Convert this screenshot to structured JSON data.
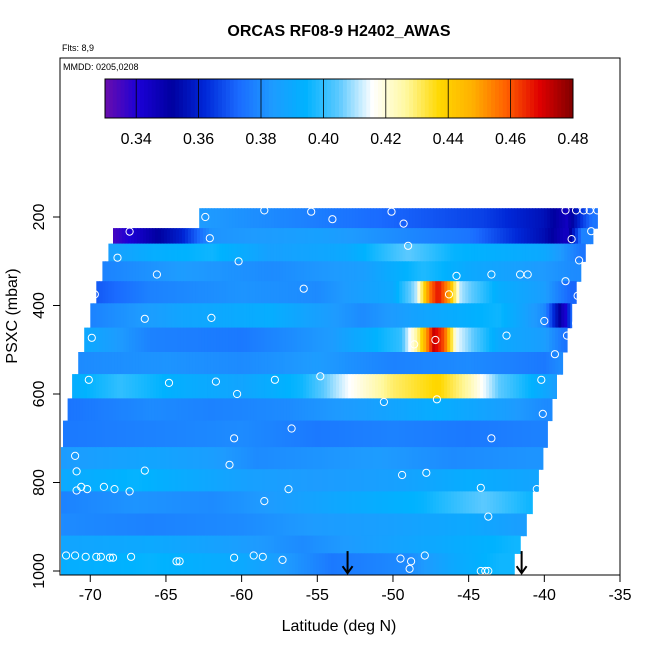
{
  "chart_data": {
    "type": "heatmap",
    "title": "ORCAS RF08-9 H2402_AWAS",
    "note_flights": "Flts: 8,9",
    "note_dates": "MMDD: 0205,0208",
    "xlabel": "Latitude (deg N)",
    "ylabel": "PSXC (mbar)",
    "xlim": [
      -72,
      -35
    ],
    "ylim": [
      1010,
      110
    ],
    "x_ticks": [
      -70,
      -65,
      -60,
      -55,
      -50,
      -45,
      -40,
      -35
    ],
    "y_ticks": [
      200,
      400,
      600,
      800,
      1000
    ],
    "colorbar": {
      "min": 0.33,
      "max": 0.48,
      "ticks": [
        0.34,
        0.36,
        0.38,
        0.4,
        0.42,
        0.44,
        0.46,
        0.48
      ],
      "tick_labels": [
        "0.34",
        "0.36",
        "0.38",
        "0.40",
        "0.42",
        "0.44",
        "0.46",
        "0.48"
      ],
      "colors": [
        "#6a0dad",
        "#1b00d6",
        "#0000a0",
        "#0028d8",
        "#1a6bff",
        "#1e9bff",
        "#00b2ff",
        "#5cc9ff",
        "#ffffff",
        "#fff8a0",
        "#ffd800",
        "#ffb000",
        "#ff6000",
        "#e00000",
        "#800000"
      ]
    },
    "layers": [
      {
        "p_top": 180,
        "p_bot": 225,
        "lat_start": -62.8,
        "lat_end": -36.5,
        "stops": [
          [
            -62.8,
            0.384
          ],
          [
            -56,
            0.378
          ],
          [
            -50,
            0.372
          ],
          [
            -44,
            0.366
          ],
          [
            -40,
            0.356
          ],
          [
            -38.5,
            0.345
          ],
          [
            -37.5,
            0.365
          ],
          [
            -36.8,
            0.375
          ]
        ]
      },
      {
        "p_top": 225,
        "p_bot": 260,
        "lat_start": -68.5,
        "lat_end": -36.8,
        "stops": [
          [
            -68.5,
            0.335
          ],
          [
            -67,
            0.343
          ],
          [
            -64,
            0.36
          ],
          [
            -62,
            0.382
          ],
          [
            -55,
            0.386
          ],
          [
            -45,
            0.375
          ],
          [
            -40,
            0.355
          ],
          [
            -38.5,
            0.344
          ],
          [
            -37.5,
            0.378
          ]
        ]
      },
      {
        "p_top": 260,
        "p_bot": 300,
        "lat_start": -68.8,
        "lat_end": -37.3,
        "stops": [
          [
            -68.8,
            0.385
          ],
          [
            -66,
            0.392
          ],
          [
            -62,
            0.396
          ],
          [
            -58,
            0.386
          ],
          [
            -53,
            0.39
          ],
          [
            -49,
            0.405
          ],
          [
            -46,
            0.395
          ],
          [
            -40,
            0.39
          ],
          [
            -37.5,
            0.375
          ]
        ]
      },
      {
        "p_top": 300,
        "p_bot": 345,
        "lat_start": -69.2,
        "lat_end": -37.6,
        "stops": [
          [
            -69.2,
            0.378
          ],
          [
            -64,
            0.384
          ],
          [
            -58,
            0.38
          ],
          [
            -52,
            0.385
          ],
          [
            -48,
            0.398
          ],
          [
            -45,
            0.39
          ],
          [
            -41,
            0.385
          ],
          [
            -38,
            0.38
          ]
        ]
      },
      {
        "p_top": 345,
        "p_bot": 395,
        "lat_start": -69.6,
        "lat_end": -37.9,
        "stops": [
          [
            -69.6,
            0.37
          ],
          [
            -66,
            0.378
          ],
          [
            -60,
            0.382
          ],
          [
            -55,
            0.38
          ],
          [
            -50,
            0.39
          ],
          [
            -48.5,
            0.41
          ],
          [
            -47.6,
            0.455
          ],
          [
            -47,
            0.468
          ],
          [
            -46.3,
            0.45
          ],
          [
            -45.5,
            0.41
          ],
          [
            -43,
            0.392
          ],
          [
            -40,
            0.385
          ],
          [
            -38.3,
            0.372
          ]
        ]
      },
      {
        "p_top": 395,
        "p_bot": 450,
        "lat_start": -70,
        "lat_end": -38.2,
        "stops": [
          [
            -70,
            0.378
          ],
          [
            -64,
            0.388
          ],
          [
            -58,
            0.392
          ],
          [
            -52,
            0.38
          ],
          [
            -47,
            0.39
          ],
          [
            -43,
            0.396
          ],
          [
            -40,
            0.38
          ],
          [
            -38.6,
            0.34
          ],
          [
            -38.3,
            0.372
          ]
        ]
      },
      {
        "p_top": 450,
        "p_bot": 505,
        "lat_start": -70.4,
        "lat_end": -38.5,
        "stops": [
          [
            -70.4,
            0.39
          ],
          [
            -66,
            0.378
          ],
          [
            -60,
            0.376
          ],
          [
            -54,
            0.384
          ],
          [
            -49.5,
            0.4
          ],
          [
            -48.3,
            0.43
          ],
          [
            -47.3,
            0.472
          ],
          [
            -46.6,
            0.46
          ],
          [
            -45.8,
            0.415
          ],
          [
            -43,
            0.39
          ],
          [
            -40,
            0.385
          ],
          [
            -38.7,
            0.375
          ]
        ]
      },
      {
        "p_top": 505,
        "p_bot": 555,
        "lat_start": -70.8,
        "lat_end": -38.8,
        "stops": [
          [
            -70.8,
            0.38
          ],
          [
            -65,
            0.382
          ],
          [
            -60,
            0.38
          ],
          [
            -55,
            0.384
          ],
          [
            -50,
            0.378
          ],
          [
            -45,
            0.38
          ],
          [
            -40,
            0.376
          ],
          [
            -39,
            0.38
          ]
        ]
      },
      {
        "p_top": 555,
        "p_bot": 610,
        "lat_start": -71.2,
        "lat_end": -39.2,
        "stops": [
          [
            -71.2,
            0.392
          ],
          [
            -68,
            0.4
          ],
          [
            -64,
            0.392
          ],
          [
            -60,
            0.388
          ],
          [
            -56,
            0.396
          ],
          [
            -53,
            0.415
          ],
          [
            -50,
            0.43
          ],
          [
            -47,
            0.438
          ],
          [
            -45,
            0.425
          ],
          [
            -43,
            0.405
          ],
          [
            -41,
            0.395
          ],
          [
            -39.2,
            0.385
          ]
        ]
      },
      {
        "p_top": 610,
        "p_bot": 660,
        "lat_start": -71.5,
        "lat_end": -39.5,
        "stops": [
          [
            -71.5,
            0.375
          ],
          [
            -66,
            0.38
          ],
          [
            -62,
            0.378
          ],
          [
            -57,
            0.38
          ],
          [
            -52,
            0.385
          ],
          [
            -47,
            0.392
          ],
          [
            -43,
            0.386
          ],
          [
            -40,
            0.38
          ]
        ]
      },
      {
        "p_top": 660,
        "p_bot": 720,
        "lat_start": -71.8,
        "lat_end": -39.8,
        "stops": [
          [
            -71.8,
            0.376
          ],
          [
            -66,
            0.378
          ],
          [
            -60,
            0.38
          ],
          [
            -55,
            0.376
          ],
          [
            -50,
            0.378
          ],
          [
            -45,
            0.376
          ],
          [
            -40,
            0.378
          ]
        ]
      },
      {
        "p_top": 720,
        "p_bot": 770,
        "lat_start": -72,
        "lat_end": -40.1,
        "stops": [
          [
            -72,
            0.384
          ],
          [
            -66,
            0.388
          ],
          [
            -62,
            0.385
          ],
          [
            -59,
            0.38
          ],
          [
            -55,
            0.382
          ],
          [
            -51,
            0.384
          ],
          [
            -46,
            0.38
          ],
          [
            -41,
            0.382
          ]
        ]
      },
      {
        "p_top": 770,
        "p_bot": 820,
        "lat_start": -72,
        "lat_end": -40.4,
        "stops": [
          [
            -72,
            0.39
          ],
          [
            -67,
            0.395
          ],
          [
            -63,
            0.39
          ],
          [
            -59.5,
            0.386
          ],
          [
            -55,
            0.384
          ],
          [
            -50,
            0.386
          ],
          [
            -45,
            0.392
          ],
          [
            -41,
            0.388
          ]
        ]
      },
      {
        "p_top": 820,
        "p_bot": 870,
        "lat_start": -72,
        "lat_end": -40.8,
        "stops": [
          [
            -72,
            0.378
          ],
          [
            -67,
            0.382
          ],
          [
            -62,
            0.38
          ],
          [
            -58,
            0.384
          ],
          [
            -53,
            0.39
          ],
          [
            -48,
            0.395
          ],
          [
            -44,
            0.405
          ],
          [
            -41,
            0.396
          ]
        ]
      },
      {
        "p_top": 870,
        "p_bot": 920,
        "lat_start": -72,
        "lat_end": -41.2,
        "stops": [
          [
            -72,
            0.38
          ],
          [
            -66,
            0.378
          ],
          [
            -60,
            0.38
          ],
          [
            -55,
            0.384
          ],
          [
            -50,
            0.386
          ],
          [
            -45,
            0.39
          ],
          [
            -41.5,
            0.385
          ]
        ]
      },
      {
        "p_top": 920,
        "p_bot": 960,
        "lat_start": -72,
        "lat_end": -41.6,
        "stops": [
          [
            -72,
            0.388
          ],
          [
            -66,
            0.39
          ],
          [
            -61,
            0.386
          ],
          [
            -56,
            0.38
          ],
          [
            -52,
            0.385
          ],
          [
            -47,
            0.39
          ],
          [
            -42,
            0.396
          ]
        ]
      },
      {
        "p_top": 960,
        "p_bot": 1010,
        "lat_start": -72,
        "lat_end": -42,
        "stops": [
          [
            -72,
            0.392
          ],
          [
            -66,
            0.395
          ],
          [
            -60,
            0.39
          ],
          [
            -58,
            0.386
          ],
          [
            -54,
            0.376
          ],
          [
            -49,
            0.38
          ],
          [
            -46,
            0.39
          ],
          [
            -43,
            0.396
          ]
        ]
      }
    ],
    "samples": [
      [
        -62.4,
        200
      ],
      [
        -58.5,
        185
      ],
      [
        -55.4,
        188
      ],
      [
        -54,
        205
      ],
      [
        -50.1,
        188
      ],
      [
        -49.3,
        215
      ],
      [
        -38.6,
        185
      ],
      [
        -37.9,
        185
      ],
      [
        -37.4,
        185
      ],
      [
        -37,
        185
      ],
      [
        -36.5,
        185
      ],
      [
        -36.1,
        185
      ],
      [
        -35.7,
        185
      ],
      [
        -35.3,
        185
      ],
      [
        -67.6,
        215
      ],
      [
        -67.4,
        233
      ],
      [
        -36.9,
        232
      ],
      [
        -62.1,
        248
      ],
      [
        -49,
        265
      ],
      [
        -38.2,
        250
      ],
      [
        -68.2,
        292
      ],
      [
        -60.2,
        300
      ],
      [
        -37.7,
        298
      ],
      [
        -65.6,
        330
      ],
      [
        -55.9,
        362
      ],
      [
        -45.8,
        333
      ],
      [
        -43.5,
        330
      ],
      [
        -41.6,
        330
      ],
      [
        -41.1,
        330
      ],
      [
        -38.6,
        345
      ],
      [
        -69.7,
        375
      ],
      [
        -46.3,
        375
      ],
      [
        -37.8,
        378
      ],
      [
        -66.4,
        430
      ],
      [
        -62,
        428
      ],
      [
        -40,
        435
      ],
      [
        -37.9,
        440
      ],
      [
        -69.9,
        473
      ],
      [
        -48.6,
        488
      ],
      [
        -47.2,
        478
      ],
      [
        -42.5,
        468
      ],
      [
        -38.5,
        468
      ],
      [
        -38,
        468
      ],
      [
        -39.3,
        510
      ],
      [
        -70.1,
        568
      ],
      [
        -64.8,
        575
      ],
      [
        -61.7,
        572
      ],
      [
        -57.8,
        568
      ],
      [
        -54.8,
        560
      ],
      [
        -60.3,
        600
      ],
      [
        -50.6,
        618
      ],
      [
        -47.1,
        612
      ],
      [
        -40.2,
        568
      ],
      [
        -40.1,
        645
      ],
      [
        -60.5,
        700
      ],
      [
        -56.7,
        678
      ],
      [
        -43.5,
        700
      ],
      [
        -71,
        740
      ],
      [
        -70.9,
        775
      ],
      [
        -66.4,
        773
      ],
      [
        -60.8,
        760
      ],
      [
        -49.4,
        783
      ],
      [
        -47.8,
        778
      ],
      [
        -69.1,
        810
      ],
      [
        -70.9,
        818
      ],
      [
        -70.6,
        810
      ],
      [
        -70.2,
        815
      ],
      [
        -68.4,
        815
      ],
      [
        -67.4,
        820
      ],
      [
        -58.5,
        842
      ],
      [
        -56.9,
        815
      ],
      [
        -44.2,
        812
      ],
      [
        -43.7,
        877
      ],
      [
        -40.5,
        815
      ],
      [
        -71.6,
        965
      ],
      [
        -71,
        965
      ],
      [
        -70.3,
        968
      ],
      [
        -69.6,
        968
      ],
      [
        -69.3,
        968
      ],
      [
        -68.7,
        970
      ],
      [
        -68.5,
        970
      ],
      [
        -67.3,
        968
      ],
      [
        -64.3,
        978
      ],
      [
        -64.1,
        978
      ],
      [
        -60.5,
        970
      ],
      [
        -59.2,
        965
      ],
      [
        -58.6,
        968
      ],
      [
        -57.3,
        975
      ],
      [
        -49.5,
        972
      ],
      [
        -48.8,
        978
      ],
      [
        -47.9,
        965
      ],
      [
        -44.2,
        1000
      ],
      [
        -43.9,
        1000
      ],
      [
        -43.7,
        1000
      ],
      [
        -40.2,
        1000
      ],
      [
        -48.9,
        995
      ]
    ],
    "arrows": [
      {
        "lat": -53,
        "p_from": 955,
        "p_to": 1005
      },
      {
        "lat": -41.5,
        "p_from": 955,
        "p_to": 1005
      }
    ]
  }
}
